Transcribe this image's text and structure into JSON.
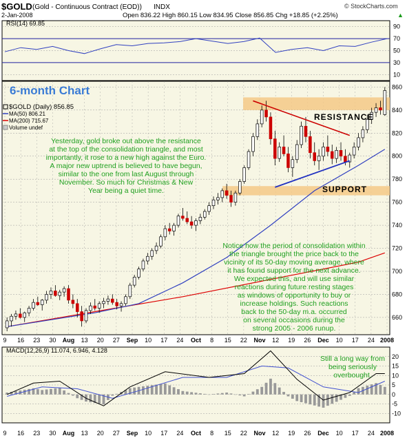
{
  "header": {
    "symbol": "$GOLD",
    "name": "(Gold - Continuous Contract (EOD))",
    "exchange": "INDX",
    "source": "© StockCharts.com",
    "date": "2-Jan-2008",
    "quote": "Open 836.22  High 860.15  Low 834.95  Close 856.85  Chg +18.85 (+2.25%)",
    "quote_arrow": "▲"
  },
  "colors": {
    "panel_bg": "#f7f6e4",
    "grid": "#9b9b9b",
    "price_up": "#ffffff",
    "price_down": "#cc0000",
    "ma50": "#3040c0",
    "ma200": "#dd0000",
    "annotation_text": "#20a020",
    "title_text": "#3a7bd5",
    "band": "#f5c987",
    "macd_line": "#000000",
    "macd_signal": "#4050d0",
    "histogram": "#999999",
    "rsi_line": "#3040c0"
  },
  "overlay": {
    "title": "6-month Chart",
    "note_top": [
      "Yesterday, gold broke out above the resistance",
      "at the top of the consolidation triangle, and most",
      "importantly, it rose to a new high against the Euro.",
      "A major new uptrend is believed to have begun,",
      "similar to the one from last August through",
      "November. So much for Christmas & New",
      "Year being a quiet time."
    ],
    "note_mid": [
      "Notice how the period of consolidation within",
      "the triangle brought the price back to the",
      "vicinity of its 50-day moving average, where",
      "it has found support for the next advance.",
      "We expected this, and will use similar",
      "reactions during future resting stages",
      "as windows of opportunity to buy or",
      "increase holdings. Such reactions",
      "back to the 50-day m.a. occurred",
      "on several occasions during the",
      "strong 2005 - 2006 runup."
    ],
    "note_macd": [
      "Still a long way from",
      "being seriously",
      "overbought."
    ],
    "resistance_label": "RESISTANCE",
    "support_label": "SUPPORT"
  },
  "chart_data": [
    {
      "type": "line",
      "title": "RSI(14) 69.85",
      "ylim": [
        0,
        100
      ],
      "yticks": [
        10,
        30,
        50,
        70,
        90
      ],
      "x": [
        "9 Jul",
        "16 Jul",
        "23 Jul",
        "30 Jul",
        "Aug",
        "13 Aug",
        "20 Aug",
        "27 Aug",
        "Sep",
        "10 Sep",
        "17 Sep",
        "24 Sep",
        "Oct",
        "8 Oct",
        "15 Oct",
        "22 Oct",
        "Nov",
        "12 Nov",
        "19 Nov",
        "26 Nov",
        "Dec",
        "10 Dec",
        "17 Dec",
        "24 Dec",
        "2008"
      ],
      "series": [
        {
          "values": [
            48,
            55,
            52,
            57,
            50,
            45,
            53,
            60,
            58,
            62,
            63,
            65,
            70,
            66,
            62,
            65,
            71,
            47,
            52,
            55,
            50,
            58,
            57,
            64,
            70
          ]
        }
      ]
    },
    {
      "type": "candlestick",
      "legend": [
        "$GOLD (Daily) 856.85",
        "MA(50) 806.21",
        "MA(200) 715.67",
        "Volume undef"
      ],
      "ylim": [
        645,
        865
      ],
      "yticks": [
        660,
        680,
        700,
        720,
        740,
        760,
        780,
        800,
        820,
        840,
        860
      ],
      "xlabels": [
        "9",
        "16",
        "23",
        "30",
        "Aug",
        "13",
        "20",
        "27",
        "Sep",
        "10",
        "17",
        "24",
        "Oct",
        "8",
        "15",
        "22",
        "Nov",
        "12",
        "19",
        "26",
        "Dec",
        "10",
        "17",
        "24",
        "2008"
      ],
      "ohlc": [
        [
          651,
          660,
          648,
          657
        ],
        [
          657,
          663,
          652,
          661
        ],
        [
          661,
          666,
          658,
          663
        ],
        [
          663,
          668,
          659,
          660
        ],
        [
          660,
          665,
          656,
          664
        ],
        [
          664,
          670,
          661,
          668
        ],
        [
          668,
          676,
          666,
          673
        ],
        [
          673,
          678,
          670,
          671
        ],
        [
          671,
          676,
          666,
          675
        ],
        [
          675,
          683,
          672,
          680
        ],
        [
          680,
          686,
          676,
          683
        ],
        [
          683,
          688,
          678,
          679
        ],
        [
          679,
          684,
          675,
          682
        ],
        [
          682,
          687,
          678,
          685
        ],
        [
          685,
          688,
          672,
          675
        ],
        [
          675,
          680,
          668,
          672
        ],
        [
          672,
          676,
          660,
          665
        ],
        [
          665,
          670,
          652,
          657
        ],
        [
          657,
          668,
          655,
          666
        ],
        [
          666,
          673,
          663,
          670
        ],
        [
          670,
          676,
          666,
          668
        ],
        [
          668,
          674,
          664,
          672
        ],
        [
          672,
          677,
          668,
          674
        ],
        [
          674,
          679,
          671,
          676
        ],
        [
          676,
          680,
          671,
          673
        ],
        [
          673,
          676,
          667,
          670
        ],
        [
          670,
          674,
          665,
          672
        ],
        [
          672,
          680,
          670,
          678
        ],
        [
          678,
          690,
          676,
          688
        ],
        [
          688,
          697,
          686,
          695
        ],
        [
          695,
          704,
          693,
          702
        ],
        [
          702,
          711,
          700,
          709
        ],
        [
          709,
          716,
          706,
          713
        ],
        [
          713,
          720,
          710,
          718
        ],
        [
          718,
          725,
          715,
          722
        ],
        [
          722,
          732,
          720,
          730
        ],
        [
          730,
          740,
          727,
          737
        ],
        [
          737,
          742,
          732,
          735
        ],
        [
          735,
          742,
          731,
          740
        ],
        [
          740,
          750,
          738,
          748
        ],
        [
          748,
          755,
          744,
          746
        ],
        [
          746,
          752,
          741,
          743
        ],
        [
          743,
          748,
          737,
          740
        ],
        [
          740,
          746,
          735,
          744
        ],
        [
          744,
          750,
          741,
          747
        ],
        [
          747,
          754,
          745,
          752
        ],
        [
          752,
          760,
          749,
          757
        ],
        [
          757,
          765,
          754,
          762
        ],
        [
          762,
          768,
          758,
          764
        ],
        [
          764,
          772,
          760,
          770
        ],
        [
          770,
          776,
          763,
          766
        ],
        [
          766,
          770,
          756,
          760
        ],
        [
          760,
          770,
          757,
          768
        ],
        [
          768,
          780,
          766,
          778
        ],
        [
          778,
          792,
          776,
          790
        ],
        [
          790,
          806,
          788,
          804
        ],
        [
          804,
          820,
          800,
          817
        ],
        [
          817,
          832,
          814,
          828
        ],
        [
          828,
          844,
          825,
          840
        ],
        [
          840,
          848,
          830,
          834
        ],
        [
          834,
          838,
          810,
          815
        ],
        [
          815,
          822,
          792,
          798
        ],
        [
          798,
          812,
          795,
          808
        ],
        [
          808,
          818,
          800,
          802
        ],
        [
          802,
          808,
          786,
          790
        ],
        [
          790,
          800,
          782,
          797
        ],
        [
          797,
          814,
          794,
          810
        ],
        [
          810,
          830,
          807,
          826
        ],
        [
          826,
          834,
          812,
          817
        ],
        [
          817,
          822,
          798,
          803
        ],
        [
          803,
          812,
          792,
          796
        ],
        [
          796,
          806,
          788,
          800
        ],
        [
          800,
          812,
          796,
          808
        ],
        [
          808,
          818,
          800,
          804
        ],
        [
          804,
          810,
          793,
          798
        ],
        [
          798,
          808,
          794,
          805
        ],
        [
          805,
          812,
          796,
          800
        ],
        [
          800,
          806,
          792,
          795
        ],
        [
          795,
          803,
          790,
          801
        ],
        [
          801,
          812,
          798,
          808
        ],
        [
          808,
          820,
          805,
          816
        ],
        [
          816,
          826,
          812,
          823
        ],
        [
          823,
          836,
          820,
          832
        ],
        [
          832,
          842,
          828,
          838
        ],
        [
          838,
          846,
          834,
          842
        ],
        [
          842,
          848,
          836,
          840
        ],
        [
          836,
          860,
          835,
          857
        ]
      ],
      "ma50": [
        [
          0,
          652
        ],
        [
          10,
          658
        ],
        [
          20,
          664
        ],
        [
          30,
          672
        ],
        [
          40,
          690
        ],
        [
          50,
          712
        ],
        [
          60,
          740
        ],
        [
          70,
          770
        ],
        [
          80,
          792
        ],
        [
          86,
          806
        ]
      ],
      "ma200": [
        [
          0,
          652
        ],
        [
          20,
          665
        ],
        [
          40,
          678
        ],
        [
          60,
          693
        ],
        [
          80,
          708
        ],
        [
          86,
          716
        ]
      ],
      "resistance_line": [
        [
          56,
          848
        ],
        [
          78,
          818
        ]
      ],
      "support_line": [
        [
          61,
          773
        ],
        [
          78,
          796
        ]
      ],
      "resistance_band": [
        840,
        851
      ],
      "support_band": [
        766,
        774
      ]
    },
    {
      "type": "bar",
      "title": "MACD(12,26,9) 11.074, 6.946, 4.128",
      "ylim": [
        -15,
        25
      ],
      "yticks": [
        -10,
        -5,
        0,
        5,
        10,
        15,
        20
      ],
      "macd": [
        [
          0,
          0
        ],
        [
          6,
          6
        ],
        [
          12,
          7
        ],
        [
          18,
          -2
        ],
        [
          22,
          -6
        ],
        [
          28,
          4
        ],
        [
          36,
          12
        ],
        [
          46,
          9
        ],
        [
          54,
          11
        ],
        [
          60,
          23
        ],
        [
          66,
          8
        ],
        [
          72,
          -3
        ],
        [
          78,
          1
        ],
        [
          84,
          11
        ],
        [
          86,
          11
        ]
      ],
      "signal": [
        [
          0,
          -1
        ],
        [
          8,
          4
        ],
        [
          16,
          3
        ],
        [
          24,
          -2
        ],
        [
          30,
          2
        ],
        [
          40,
          9
        ],
        [
          50,
          9
        ],
        [
          58,
          15
        ],
        [
          64,
          14
        ],
        [
          72,
          4
        ],
        [
          80,
          1
        ],
        [
          86,
          7
        ]
      ]
    }
  ]
}
